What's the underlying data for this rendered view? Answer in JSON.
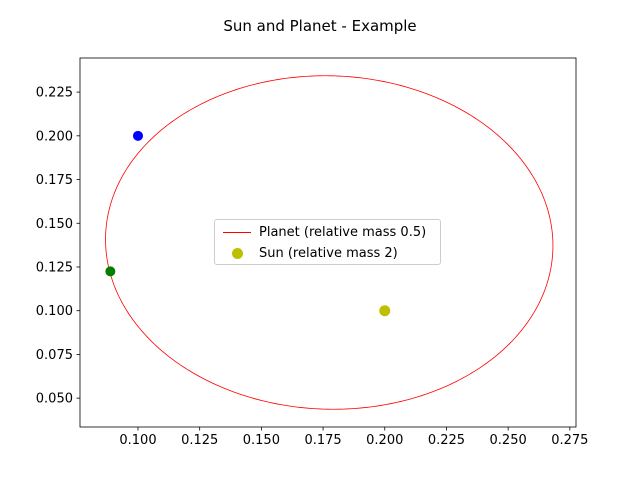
{
  "chart_data": {
    "type": "line",
    "title": "Sun and Planet - Example",
    "xlabel": "",
    "ylabel": "",
    "xlim": [
      0.0765,
      0.2775
    ],
    "ylim": [
      0.0335,
      0.2445
    ],
    "xticks": [
      "0.100",
      "0.125",
      "0.150",
      "0.175",
      "0.200",
      "0.225",
      "0.250",
      "0.275"
    ],
    "yticks": [
      "0.050",
      "0.075",
      "0.100",
      "0.125",
      "0.150",
      "0.175",
      "0.200",
      "0.225"
    ],
    "grid": false,
    "legend_position": "center",
    "series": [
      {
        "name": "Planet (relative mass 0.5)",
        "kind": "line",
        "color": "#ff0000",
        "ellipse": {
          "center": [
            0.1775,
            0.139
          ],
          "semi_axes": [
            0.0905,
            0.0955
          ],
          "rotation_deg": 10
        }
      },
      {
        "name": "Sun (relative mass 2)",
        "kind": "scatter",
        "color": "#bfbf00",
        "points": [
          [
            0.2,
            0.1
          ]
        ]
      }
    ],
    "extra_points": [
      {
        "label": "blue",
        "color": "#0000ff",
        "x": 0.1,
        "y": 0.2
      },
      {
        "label": "green",
        "color": "#007f00",
        "x": 0.0888,
        "y": 0.1225
      }
    ]
  }
}
